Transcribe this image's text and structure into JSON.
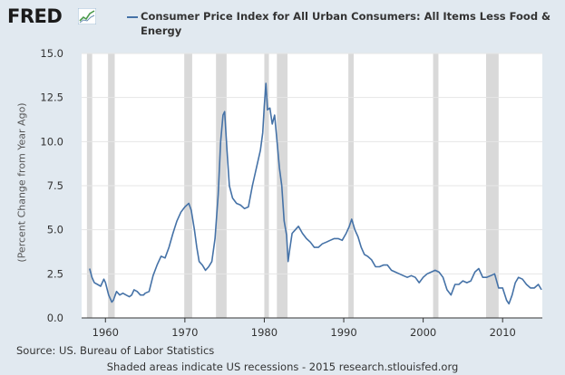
{
  "header": {
    "logo_text": "FRED",
    "logo_icon": "line-graph-icon"
  },
  "chart_data": {
    "type": "line",
    "title": "Consumer Price Index for All Urban Consumers: All Items Less Food & Energy",
    "ylabel": "(Percent Change from Year Ago)",
    "xlabel": "",
    "xlim": [
      1957.0,
      2015.0
    ],
    "ylim": [
      0,
      15
    ],
    "yticks": [
      "0.0",
      "2.5",
      "5.0",
      "7.5",
      "10.0",
      "12.5",
      "15.0"
    ],
    "ytick_values": [
      0,
      2.5,
      5,
      7.5,
      10,
      12.5,
      15
    ],
    "xticks": [
      "1960",
      "1970",
      "1980",
      "1990",
      "2000",
      "2010"
    ],
    "xtick_values": [
      1960,
      1970,
      1980,
      1990,
      2000,
      2010
    ],
    "grid": true,
    "line_color": "#4572a7",
    "recession_color": "#d9d9d9",
    "recessions": [
      [
        1957.67,
        1958.33
      ],
      [
        1960.33,
        1961.17
      ],
      [
        1969.92,
        1970.92
      ],
      [
        1973.92,
        1975.25
      ],
      [
        1980.0,
        1980.58
      ],
      [
        1981.58,
        1982.92
      ],
      [
        1990.58,
        1991.25
      ],
      [
        2001.25,
        2001.92
      ],
      [
        2007.92,
        2009.5
      ]
    ],
    "series": [
      {
        "name": "Consumer Price Index for All Urban Consumers: All Items Less Food & Energy",
        "x": [
          1958.0,
          1958.3,
          1958.6,
          1959.0,
          1959.4,
          1959.8,
          1960.0,
          1960.4,
          1960.8,
          1961.0,
          1961.4,
          1961.8,
          1962.2,
          1962.6,
          1963.0,
          1963.3,
          1963.6,
          1964.0,
          1964.4,
          1964.8,
          1965.0,
          1965.5,
          1966.0,
          1966.5,
          1967.0,
          1967.5,
          1968.0,
          1968.5,
          1969.0,
          1969.5,
          1970.0,
          1970.5,
          1970.8,
          1971.2,
          1971.5,
          1971.8,
          1972.2,
          1972.6,
          1973.0,
          1973.4,
          1973.8,
          1974.2,
          1974.5,
          1974.8,
          1975.0,
          1975.3,
          1975.6,
          1976.0,
          1976.5,
          1977.0,
          1977.5,
          1978.0,
          1978.5,
          1979.0,
          1979.5,
          1979.8,
          1980.0,
          1980.2,
          1980.4,
          1980.7,
          1981.0,
          1981.3,
          1981.6,
          1981.9,
          1982.2,
          1982.5,
          1982.8,
          1983.0,
          1983.2,
          1983.5,
          1983.9,
          1984.3,
          1984.8,
          1985.3,
          1985.8,
          1986.3,
          1986.8,
          1987.3,
          1987.8,
          1988.3,
          1988.8,
          1989.3,
          1989.8,
          1990.3,
          1990.7,
          1991.0,
          1991.4,
          1991.8,
          1992.2,
          1992.6,
          1993.0,
          1993.5,
          1994.0,
          1994.5,
          1995.0,
          1995.5,
          1996.0,
          1996.5,
          1997.0,
          1997.5,
          1998.0,
          1998.5,
          1999.0,
          1999.5,
          2000.0,
          2000.5,
          2001.0,
          2001.5,
          2002.0,
          2002.5,
          2003.0,
          2003.5,
          2004.0,
          2004.5,
          2005.0,
          2005.5,
          2006.0,
          2006.5,
          2007.0,
          2007.5,
          2008.0,
          2008.5,
          2009.0,
          2009.5,
          2010.0,
          2010.5,
          2010.8,
          2011.2,
          2011.6,
          2012.0,
          2012.5,
          2013.0,
          2013.5,
          2014.0,
          2014.5,
          2014.9
        ],
        "y": [
          2.8,
          2.3,
          2.0,
          1.9,
          1.8,
          2.2,
          2.0,
          1.3,
          0.9,
          1.0,
          1.5,
          1.3,
          1.4,
          1.3,
          1.2,
          1.3,
          1.6,
          1.5,
          1.3,
          1.3,
          1.4,
          1.5,
          2.4,
          3.0,
          3.5,
          3.4,
          4.0,
          4.8,
          5.5,
          6.0,
          6.3,
          6.5,
          6.1,
          5.0,
          4.0,
          3.2,
          3.0,
          2.7,
          2.9,
          3.2,
          4.5,
          7.0,
          10.0,
          11.5,
          11.7,
          9.5,
          7.5,
          6.8,
          6.5,
          6.4,
          6.2,
          6.3,
          7.5,
          8.5,
          9.5,
          10.5,
          12.0,
          13.3,
          11.8,
          11.9,
          11.0,
          11.5,
          10.0,
          8.5,
          7.5,
          5.5,
          4.7,
          3.2,
          3.9,
          4.8,
          5.0,
          5.2,
          4.8,
          4.5,
          4.3,
          4.0,
          4.0,
          4.2,
          4.3,
          4.4,
          4.5,
          4.5,
          4.4,
          4.8,
          5.2,
          5.6,
          5.0,
          4.6,
          4.0,
          3.6,
          3.5,
          3.3,
          2.9,
          2.9,
          3.0,
          3.0,
          2.7,
          2.6,
          2.5,
          2.4,
          2.3,
          2.4,
          2.3,
          2.0,
          2.3,
          2.5,
          2.6,
          2.7,
          2.6,
          2.3,
          1.6,
          1.3,
          1.9,
          1.9,
          2.1,
          2.0,
          2.1,
          2.6,
          2.8,
          2.3,
          2.3,
          2.4,
          2.5,
          1.7,
          1.7,
          1.0,
          0.8,
          1.3,
          2.0,
          2.3,
          2.2,
          1.9,
          1.7,
          1.7,
          1.9,
          1.6
        ]
      }
    ]
  },
  "footer": {
    "source": "Source: US. Bureau of Labor Statistics",
    "note": "Shaded areas indicate US recessions - 2015 research.stlouisfed.org"
  }
}
